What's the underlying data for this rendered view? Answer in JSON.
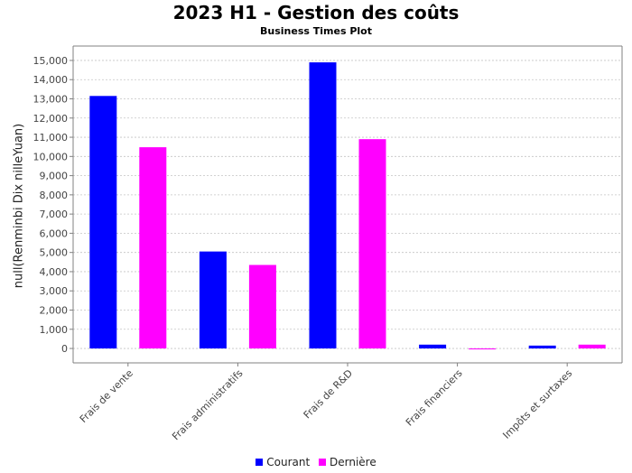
{
  "chart_data": {
    "type": "bar",
    "title": "2023 H1 - Gestion des coûts",
    "subtitle": "Business Times Plot",
    "xlabel": "",
    "ylabel": "null(Renminbi Dix nilleYuan)",
    "ylim": [
      -750,
      15750
    ],
    "yticks": [
      0,
      1000,
      2000,
      3000,
      4000,
      5000,
      6000,
      7000,
      8000,
      9000,
      10000,
      11000,
      12000,
      13000,
      14000,
      15000
    ],
    "ytick_labels": [
      "0",
      "1,000",
      "2,000",
      "3,000",
      "4,000",
      "5,000",
      "6,000",
      "7,000",
      "8,000",
      "9,000",
      "10,000",
      "11,000",
      "12,000",
      "13,000",
      "14,000",
      "15,000"
    ],
    "grid": true,
    "legend_position": "bottom",
    "categories": [
      "Frais de vente",
      "Frais administratifs",
      "Frais de R&D",
      "Frais financiers",
      "Impôts et surtaxes"
    ],
    "series": [
      {
        "name": "Courant",
        "color": "#0000ff",
        "values": [
          13150,
          5050,
          14900,
          200,
          150
        ]
      },
      {
        "name": "Dernière",
        "color": "#ff00ff",
        "values": [
          10480,
          4350,
          10900,
          -30,
          200
        ]
      }
    ]
  }
}
